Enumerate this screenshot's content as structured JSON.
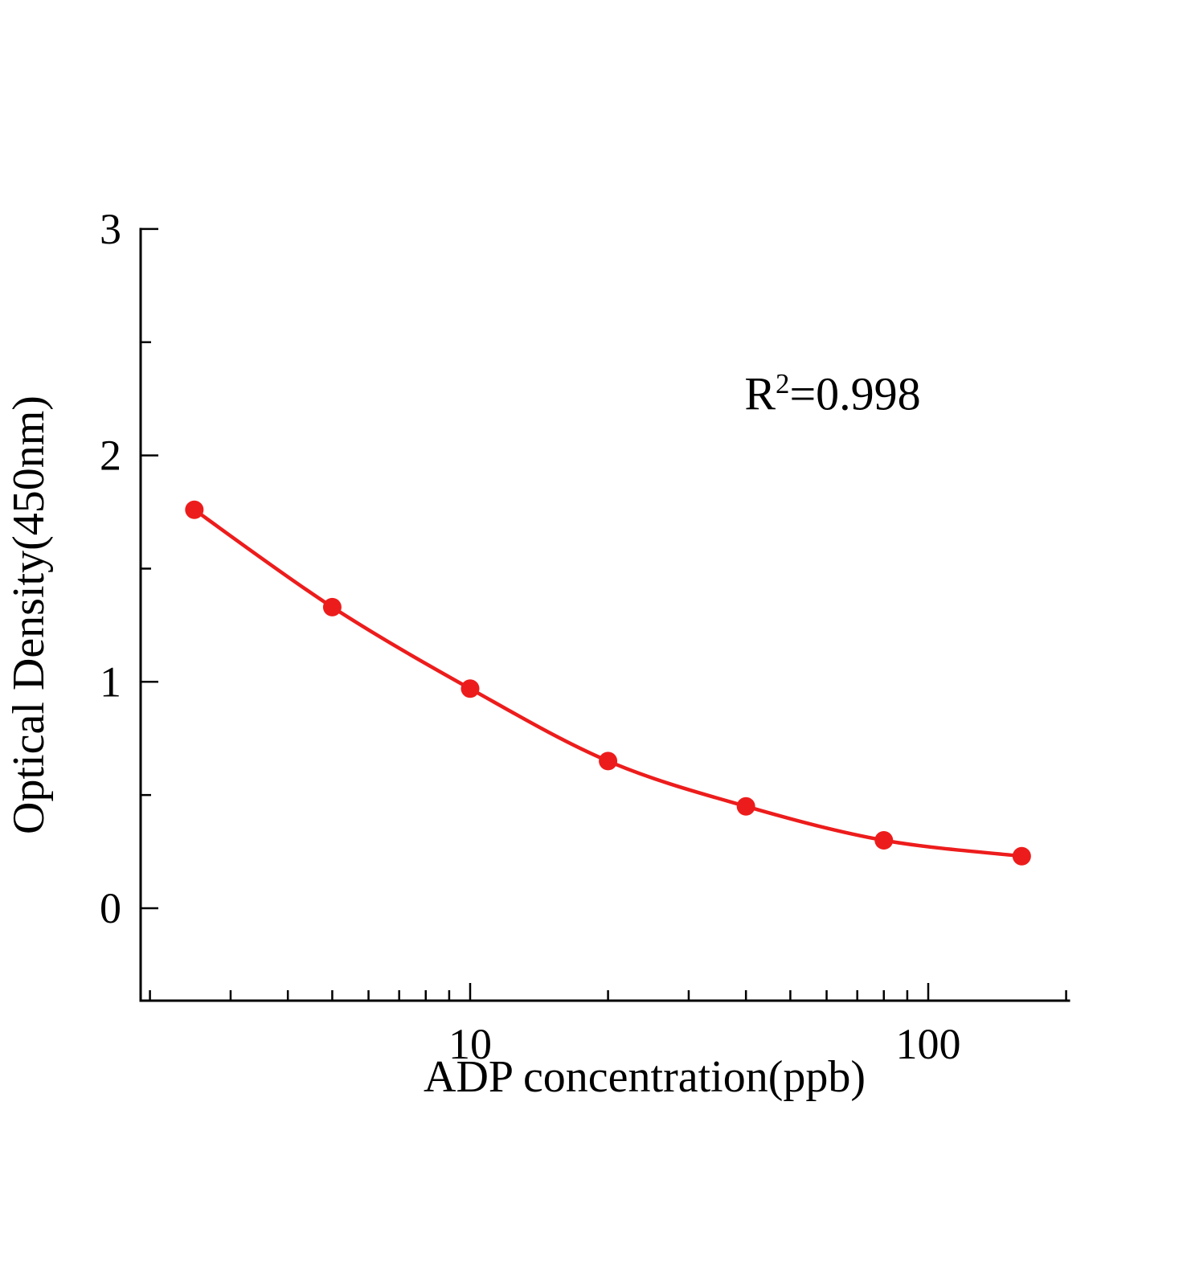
{
  "chart_data": {
    "type": "line",
    "title": "",
    "xlabel": "ADP concentration(ppb)",
    "ylabel": "Optical Density(450nm)",
    "x_scale": "log",
    "x": [
      2.5,
      5,
      10,
      20,
      40,
      80,
      160
    ],
    "y": [
      1.76,
      1.33,
      0.97,
      0.65,
      0.45,
      0.3,
      0.23
    ],
    "x_ticks": [
      {
        "value": 10,
        "label": "10"
      },
      {
        "value": 100,
        "label": "100"
      }
    ],
    "x_minor_ticks": [
      2,
      3,
      4,
      5,
      6,
      7,
      8,
      9,
      20,
      30,
      40,
      50,
      60,
      70,
      80,
      90,
      200
    ],
    "y_ticks": [
      {
        "value": 0,
        "label": "0"
      },
      {
        "value": 1,
        "label": "1"
      },
      {
        "value": 2,
        "label": "2"
      },
      {
        "value": 3,
        "label": "3"
      }
    ],
    "y_minor_ticks": [
      0.5,
      1.5,
      2.5
    ],
    "ylim": [
      -0.41,
      3
    ],
    "annotation": {
      "base": "R",
      "sup": "2",
      "rest": "=0.998"
    },
    "line_color": "#ed1c1c",
    "marker_color": "#ed1c1c",
    "axis_color": "#000000",
    "legend": "none",
    "grid": "off"
  }
}
